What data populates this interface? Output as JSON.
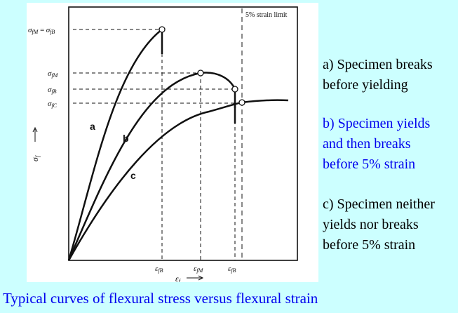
{
  "figure": {
    "strain_limit_label": "5% strain limit",
    "y_axis_label": "σ",
    "y_axis_sub": "f",
    "x_axis_label": "ε",
    "x_axis_sub": "f",
    "y_ticks": {
      "fm_eq_fb": {
        "sym1": "σ",
        "sub1": "fM",
        "eq": "=",
        "sym2": "σ",
        "sub2": "fB"
      },
      "fm": {
        "sym": "σ",
        "sub": "fM"
      },
      "fb": {
        "sym": "σ",
        "sub": "fB"
      },
      "fc": {
        "sym": "σ",
        "sub": "fC"
      }
    },
    "x_ticks": [
      {
        "sym": "ε",
        "sub": "fB"
      },
      {
        "sym": "ε",
        "sub": "fM"
      },
      {
        "sym": "ε",
        "sub": "fB"
      }
    ],
    "curve_labels": {
      "a": "a",
      "b": "b",
      "c": "c"
    }
  },
  "legend": {
    "a": [
      "a) Specimen breaks",
      "before yielding"
    ],
    "b": [
      "b) Specimen yields",
      "and then breaks",
      "before 5% strain"
    ],
    "c": [
      "c) Specimen neither",
      "yields nor breaks",
      "before 5% strain"
    ]
  },
  "caption": "Typical curves of flexural stress versus flexural strain",
  "colors": {
    "background": "#ccffff",
    "blue_text": "#0000ee"
  }
}
